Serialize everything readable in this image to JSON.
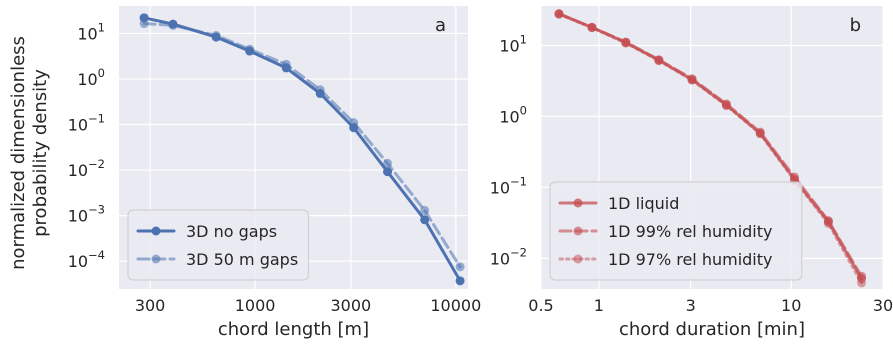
{
  "figure": {
    "ylabel_line1": "normalized dimensionless",
    "ylabel_line2": "probability density"
  },
  "chart_data": [
    {
      "type": "line",
      "panel_label": "a",
      "xlabel": "chord length [m]",
      "ylabel": "normalized dimensionless probability density",
      "xscale": "log",
      "yscale": "log",
      "xlim": [
        210,
        11500
      ],
      "ylim": [
        2.45e-05,
        40
      ],
      "xticks": [
        300,
        1000,
        3000,
        10000
      ],
      "xtick_labels": [
        "300",
        "1000",
        "3000",
        "10000"
      ],
      "yticks": [
        0.0001,
        0.001,
        0.01,
        0.1,
        1,
        10
      ],
      "ytick_labels": [
        [
          "10",
          "−4"
        ],
        [
          "10",
          "−3"
        ],
        [
          "10",
          "−2"
        ],
        [
          "10",
          "−1"
        ],
        [
          "10",
          "0"
        ],
        [
          "10",
          "1"
        ]
      ],
      "grid": true,
      "legend_position": "lower-left",
      "series": [
        {
          "name": "3D no gaps",
          "color": "#4c72b0",
          "style": "solid",
          "alpha": 1,
          "x": [
            280,
            390,
            640,
            940,
            1430,
            2110,
            3100,
            4570,
            7000,
            10500
          ],
          "y": [
            22,
            16,
            8.3,
            4.1,
            1.75,
            0.48,
            0.085,
            0.0092,
            0.00081,
            3.7e-05
          ]
        },
        {
          "name": "3D 50 m gaps",
          "color": "#4c72b0",
          "style": "dashed",
          "alpha": 0.55,
          "x": [
            280,
            390,
            640,
            940,
            1430,
            2110,
            3100,
            4570,
            7000,
            10500
          ],
          "y": [
            16.5,
            15,
            9.0,
            4.5,
            2.1,
            0.58,
            0.11,
            0.014,
            0.0013,
            7.5e-05
          ]
        }
      ]
    },
    {
      "type": "line",
      "panel_label": "b",
      "xlabel": "chord duration [min]",
      "xscale": "log",
      "yscale": "log",
      "xlim": [
        0.5,
        30
      ],
      "ylim": [
        0.0037,
        36
      ],
      "xticks": [
        0.5,
        1,
        3,
        10,
        30
      ],
      "xtick_labels": [
        "0.5",
        "1",
        "3",
        "10",
        "30"
      ],
      "yticks": [
        0.01,
        0.1,
        1,
        10
      ],
      "ytick_labels": [
        [
          "10",
          "−2"
        ],
        [
          "10",
          "−1"
        ],
        [
          "10",
          "0"
        ],
        [
          "10",
          "1"
        ]
      ],
      "grid": true,
      "legend_position": "lower-left",
      "series": [
        {
          "name": "1D liquid",
          "color": "#c44e52",
          "style": "solid",
          "alpha": 0.75,
          "x": [
            0.62,
            0.92,
            1.38,
            2.05,
            3.05,
            4.6,
            6.9,
            10.4,
            15.6,
            23.2
          ],
          "y": [
            28,
            18,
            11,
            6.2,
            3.3,
            1.45,
            0.58,
            0.13,
            0.033,
            0.0052
          ]
        },
        {
          "name": "1D 99% rel humidity",
          "color": "#c44e52",
          "style": "dashed",
          "alpha": 0.6,
          "x": [
            0.62,
            0.92,
            1.38,
            2.05,
            3.05,
            4.6,
            6.9,
            10.4,
            15.6,
            23.2
          ],
          "y": [
            28,
            18,
            11.2,
            6.3,
            3.4,
            1.5,
            0.6,
            0.14,
            0.034,
            0.0056
          ]
        },
        {
          "name": "1D 97% rel humidity",
          "color": "#c44e52",
          "style": "dotted",
          "alpha": 0.5,
          "x": [
            0.62,
            0.92,
            1.38,
            2.05,
            3.05,
            4.6,
            6.9,
            10.4,
            15.6,
            23.2
          ],
          "y": [
            27.5,
            17.8,
            10.8,
            6.1,
            3.25,
            1.42,
            0.57,
            0.125,
            0.031,
            0.0045
          ]
        }
      ]
    }
  ]
}
